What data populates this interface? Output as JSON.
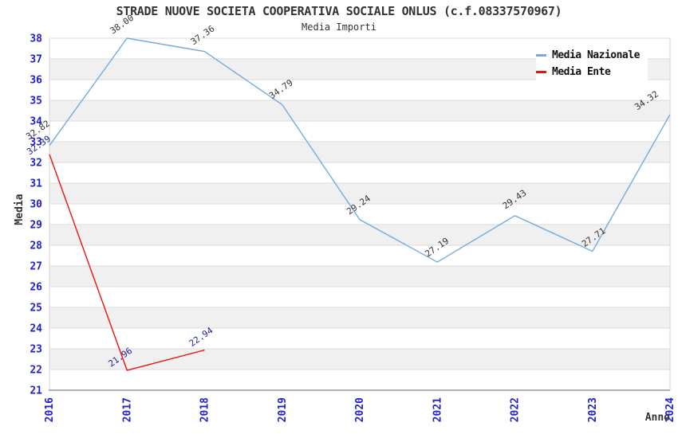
{
  "chart_data": {
    "type": "line",
    "title": "STRADE NUOVE SOCIETA COOPERATIVA SOCIALE ONLUS (c.f.08337570967)",
    "subtitle": "Media Importi",
    "xlabel": "Anno",
    "ylabel": "Media",
    "x": [
      2016,
      2017,
      2018,
      2019,
      2020,
      2021,
      2022,
      2023,
      2024
    ],
    "ylim": [
      21,
      38
    ],
    "ytick_step": 1,
    "grid": true,
    "legend_position": "top-right",
    "series": [
      {
        "name": "Media Nazionale",
        "color": "#74AADF",
        "label_color": "#333333",
        "values": [
          32.82,
          38.0,
          37.36,
          34.79,
          29.24,
          27.19,
          29.43,
          27.71,
          34.32
        ]
      },
      {
        "name": "Media Ente",
        "color": "#EE1111",
        "label_color": "#22229B",
        "values": [
          32.39,
          21.96,
          22.94,
          null,
          null,
          null,
          null,
          null,
          null
        ]
      }
    ],
    "colors": {
      "tick_label": "#2222CC",
      "band": "#F0F0F0",
      "gridline": "#DBDBDB",
      "axis_line": "#999999",
      "plot_border": "#D6D6D6",
      "text": "#333333"
    }
  }
}
